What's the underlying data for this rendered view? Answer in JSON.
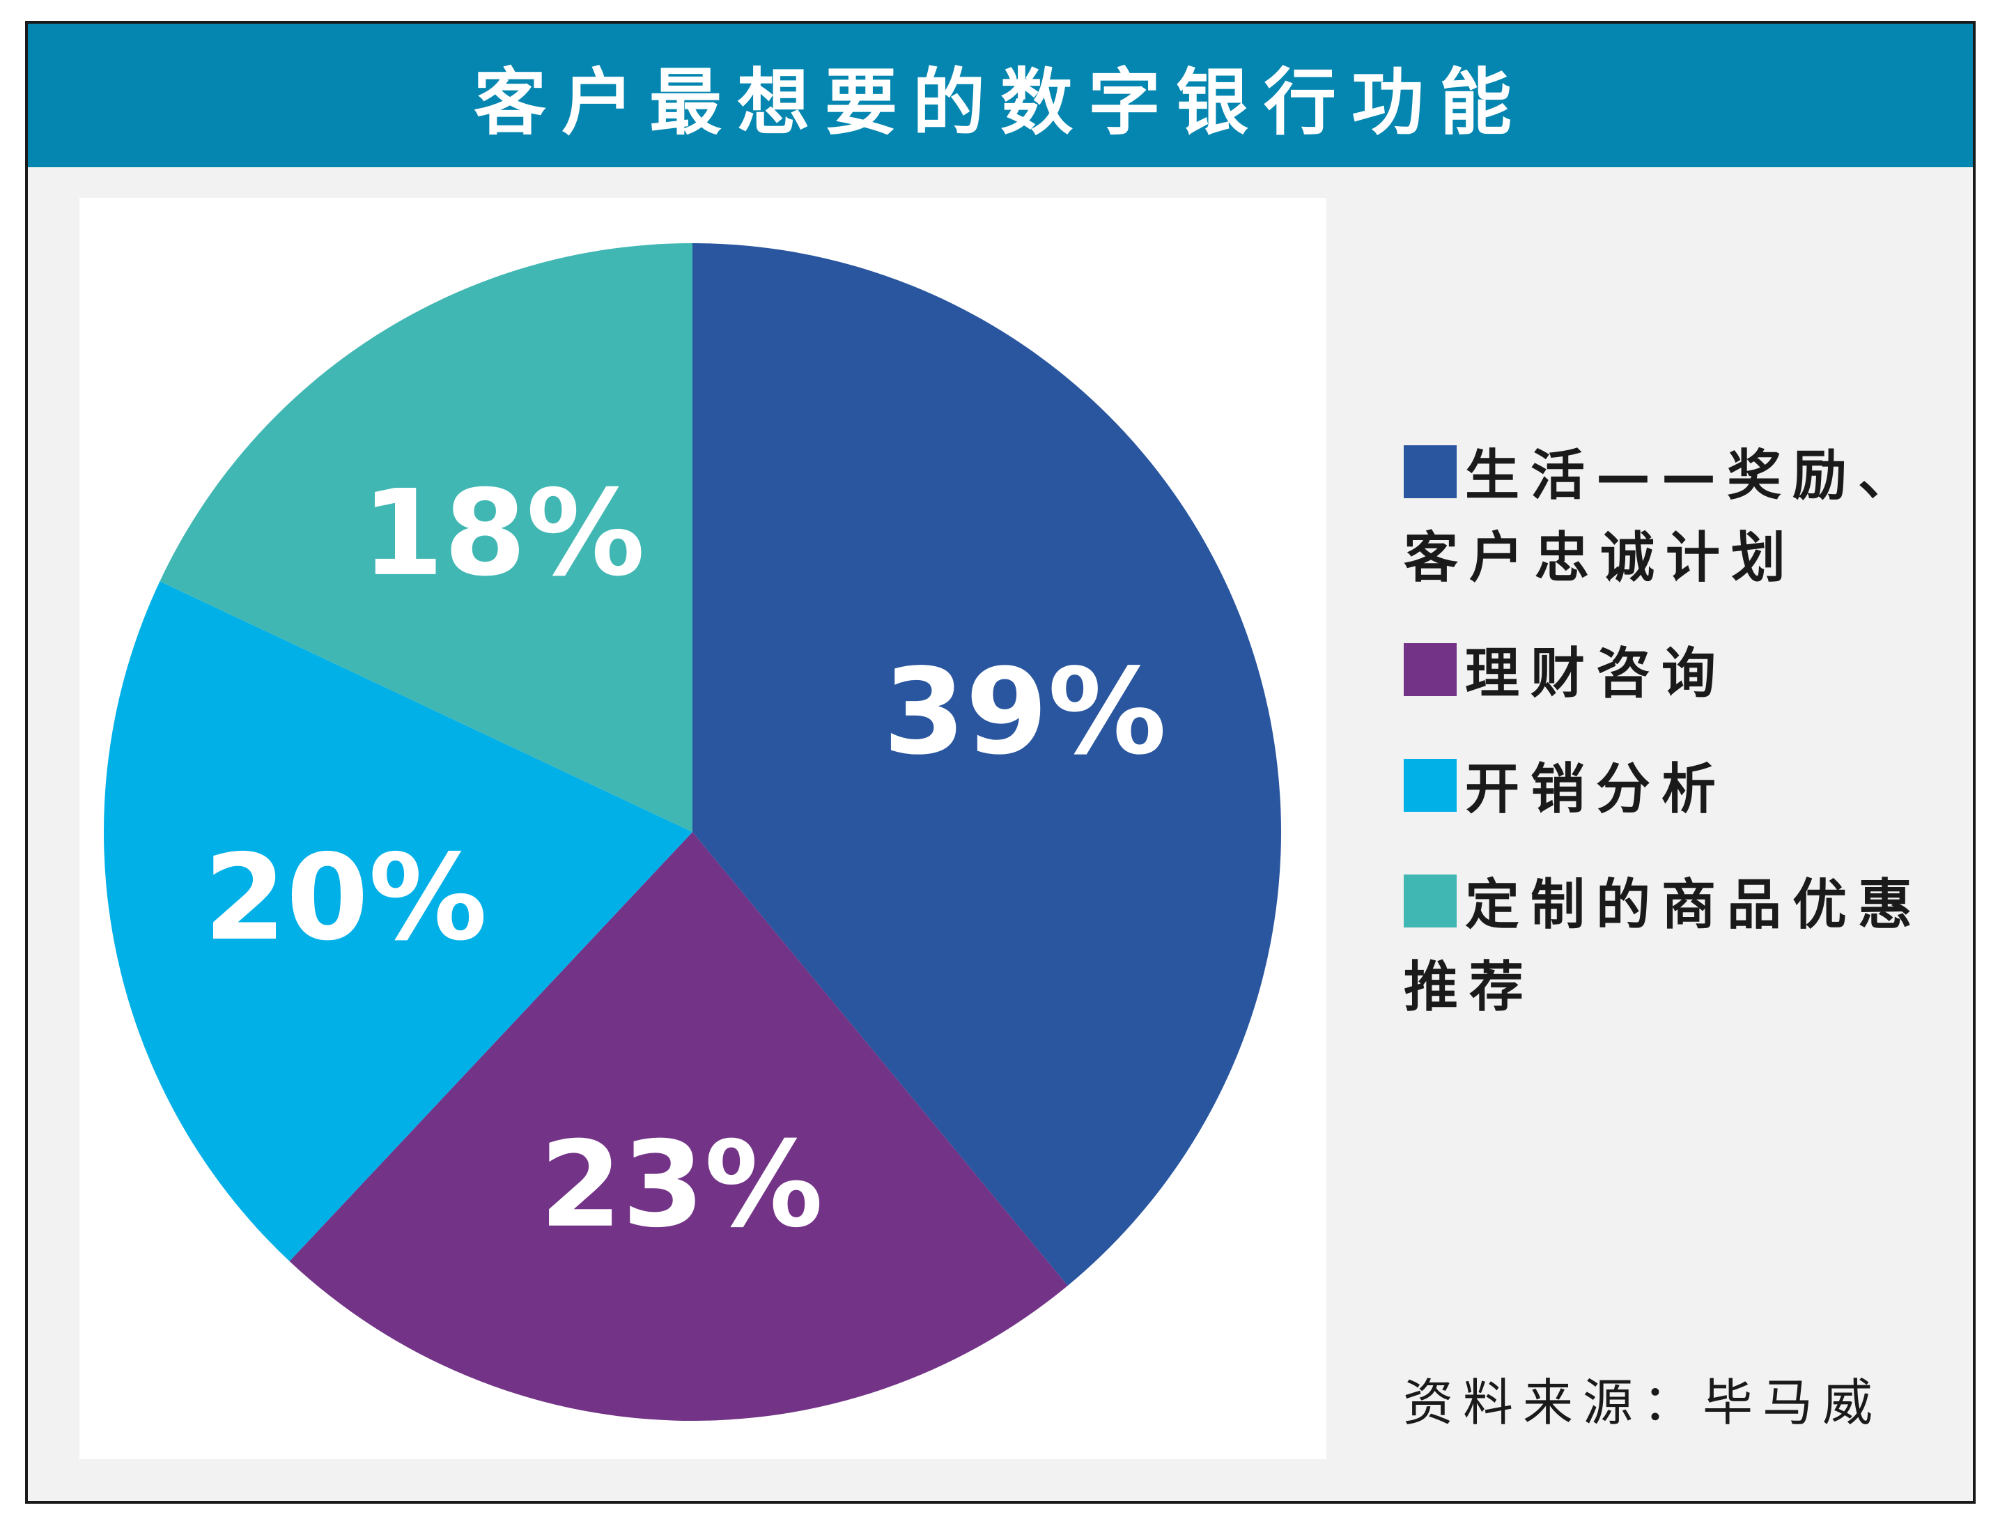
{
  "title": "客户最想要的数字银行功能",
  "source": "资料来源：毕马威",
  "chart_data": {
    "type": "pie",
    "title": "客户最想要的数字银行功能",
    "unit": "%",
    "slices": [
      {
        "label": "生活——奖励、客户忠诚计划",
        "value": 39,
        "display": "39%",
        "color": "#29569f"
      },
      {
        "label": "理财咨询",
        "value": 23,
        "display": "23%",
        "color": "#733487"
      },
      {
        "label": "开销分析",
        "value": 20,
        "display": "20%",
        "color": "#02b0e8"
      },
      {
        "label": "定制的商品优惠推荐",
        "value": 18,
        "display": "18%",
        "color": "#41b7b3"
      }
    ],
    "start_angle": "top",
    "direction": "clockwise",
    "legend_position": "right",
    "source": "资料来源：毕马威"
  }
}
